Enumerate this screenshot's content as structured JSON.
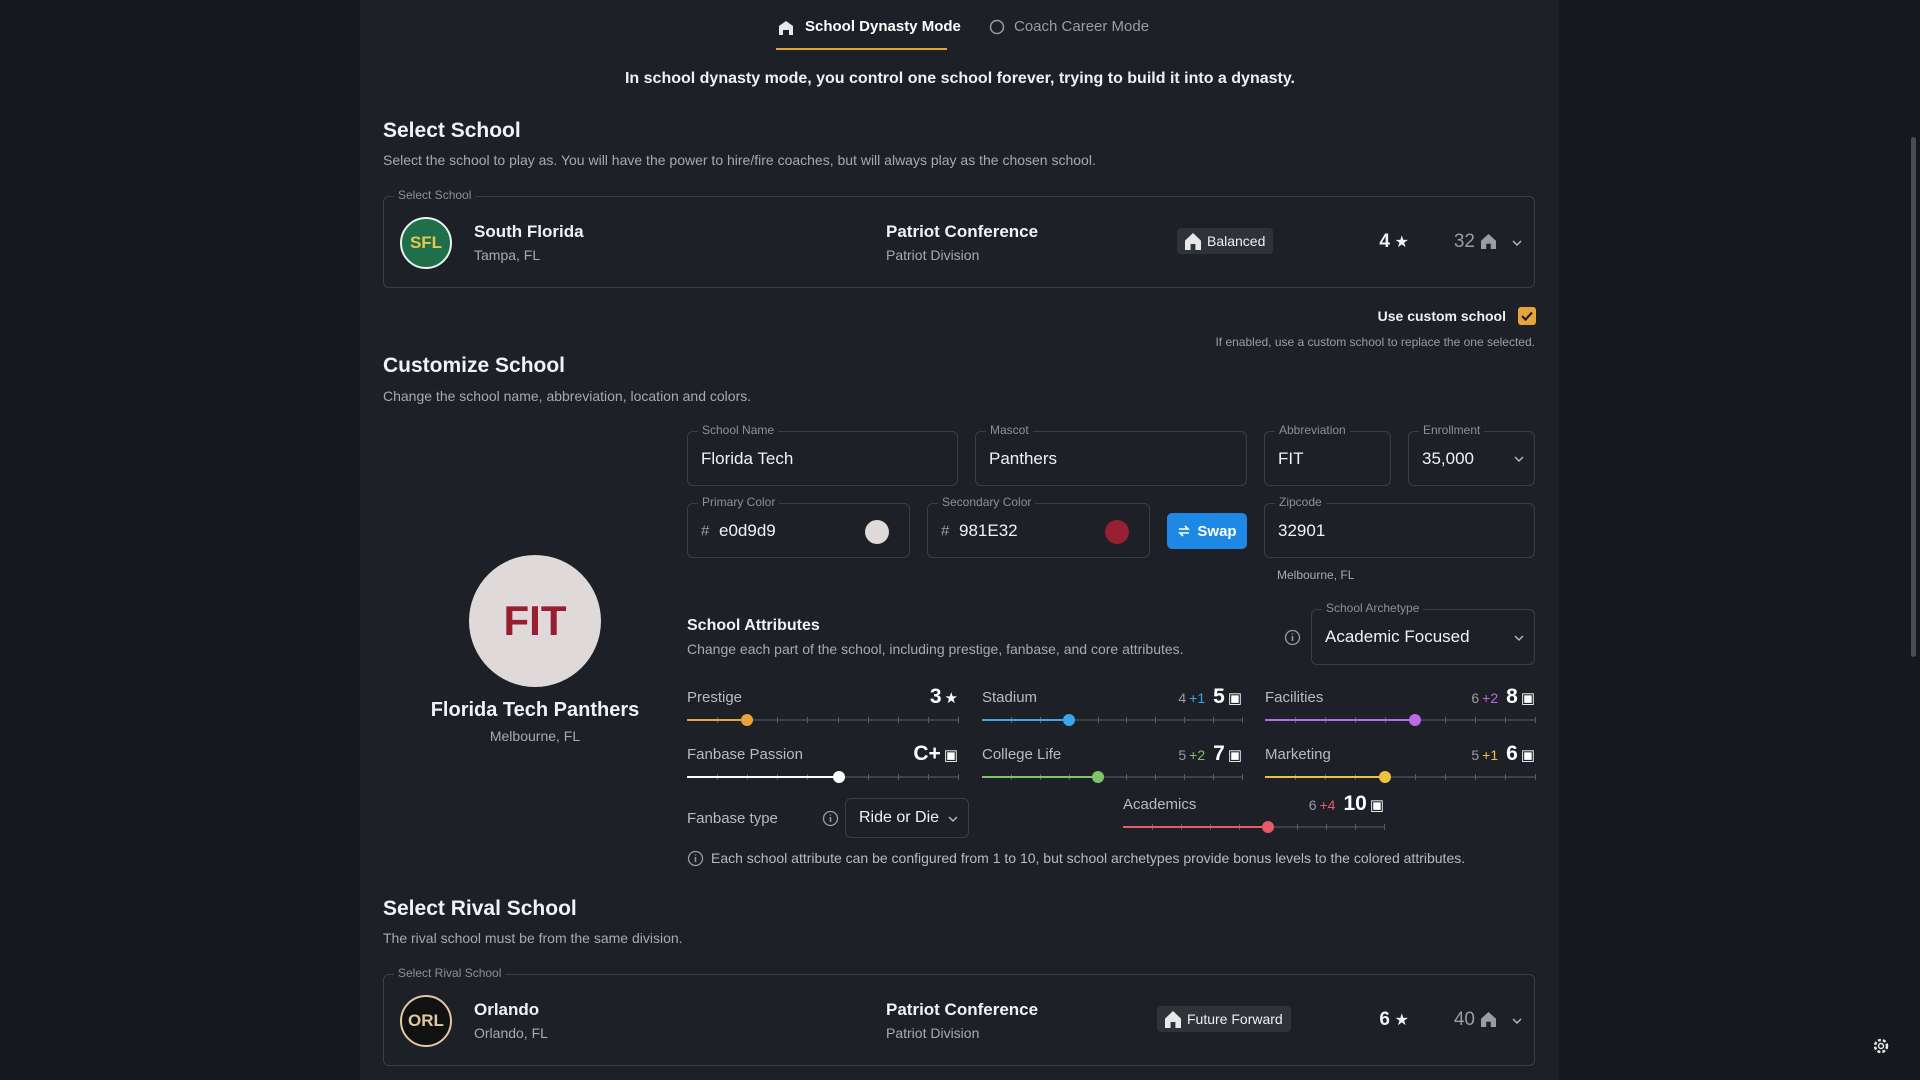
{
  "tabs": [
    {
      "label": "School Dynasty Mode"
    },
    {
      "label": "Coach Career Mode"
    }
  ],
  "mode_description": "In school dynasty mode, you control one school forever, trying to build it into a dynasty.",
  "select_school": {
    "title": "Select School",
    "subtitle": "Select the school to play as. You will have the power to hire/fire coaches, but will always play as the chosen school.",
    "field_label": "Select School",
    "school": {
      "abbreviation": "SFL",
      "name": "South Florida",
      "location": "Tampa, FL",
      "conference": "Patriot Conference",
      "division": "Patriot Division",
      "archetype": "Balanced",
      "stars": 4,
      "count": 32
    }
  },
  "custom_school": {
    "label": "Use custom school",
    "note": "If enabled, use a custom school to replace the one selected."
  },
  "customize": {
    "title": "Customize School",
    "subtitle": "Change the school name, abbreviation, location and colors.",
    "preview": {
      "abbreviation": "FIT",
      "name": "Florida Tech Panthers",
      "location": "Melbourne, FL"
    },
    "fields": {
      "school_name": {
        "label": "School Name",
        "value": "Florida Tech"
      },
      "mascot": {
        "label": "Mascot",
        "value": "Panthers"
      },
      "abbreviation": {
        "label": "Abbreviation",
        "value": "FIT"
      },
      "enrollment": {
        "label": "Enrollment",
        "value": "35,000"
      },
      "primary_color": {
        "label": "Primary Color",
        "prefix": "#",
        "value": "e0d9d9"
      },
      "secondary_color": {
        "label": "Secondary Color",
        "prefix": "#",
        "value": "981E32"
      },
      "swap": "Swap",
      "zipcode": {
        "label": "Zipcode",
        "value": "32901",
        "hint": "Melbourne, FL"
      }
    }
  },
  "attributes": {
    "title": "School Attributes",
    "subtitle": "Change each part of the school, including prestige, fanbase, and core attributes.",
    "archetype": {
      "label": "School Archetype",
      "value": "Academic Focused"
    },
    "items": [
      {
        "label": "Prestige",
        "value": 3
      },
      {
        "label": "Stadium",
        "base": 4,
        "bonus": "+1",
        "value": 5
      },
      {
        "label": "Facilities",
        "base": 6,
        "bonus": "+2",
        "value": 8
      },
      {
        "label": "Fanbase Passion",
        "value": "C+"
      },
      {
        "label": "College Life",
        "base": 5,
        "bonus": "+2",
        "value": 7
      },
      {
        "label": "Marketing",
        "base": 5,
        "bonus": "+1",
        "value": 6
      },
      {
        "label": "Academics",
        "base": 6,
        "bonus": "+4",
        "value": 10
      }
    ],
    "fanbase_type": {
      "label": "Fanbase type",
      "value": "Ride or Die"
    },
    "note": "Each school attribute can be configured from 1 to 10, but school archetypes provide bonus levels to the colored attributes."
  },
  "rival": {
    "title": "Select Rival School",
    "subtitle": "The rival school must be from the same division.",
    "field_label": "Select Rival School",
    "school": {
      "abbreviation": "ORL",
      "name": "Orlando",
      "location": "Orlando, FL",
      "conference": "Patriot Conference",
      "division": "Patriot Division",
      "archetype": "Future Forward",
      "stars": 6,
      "count": 40
    }
  }
}
